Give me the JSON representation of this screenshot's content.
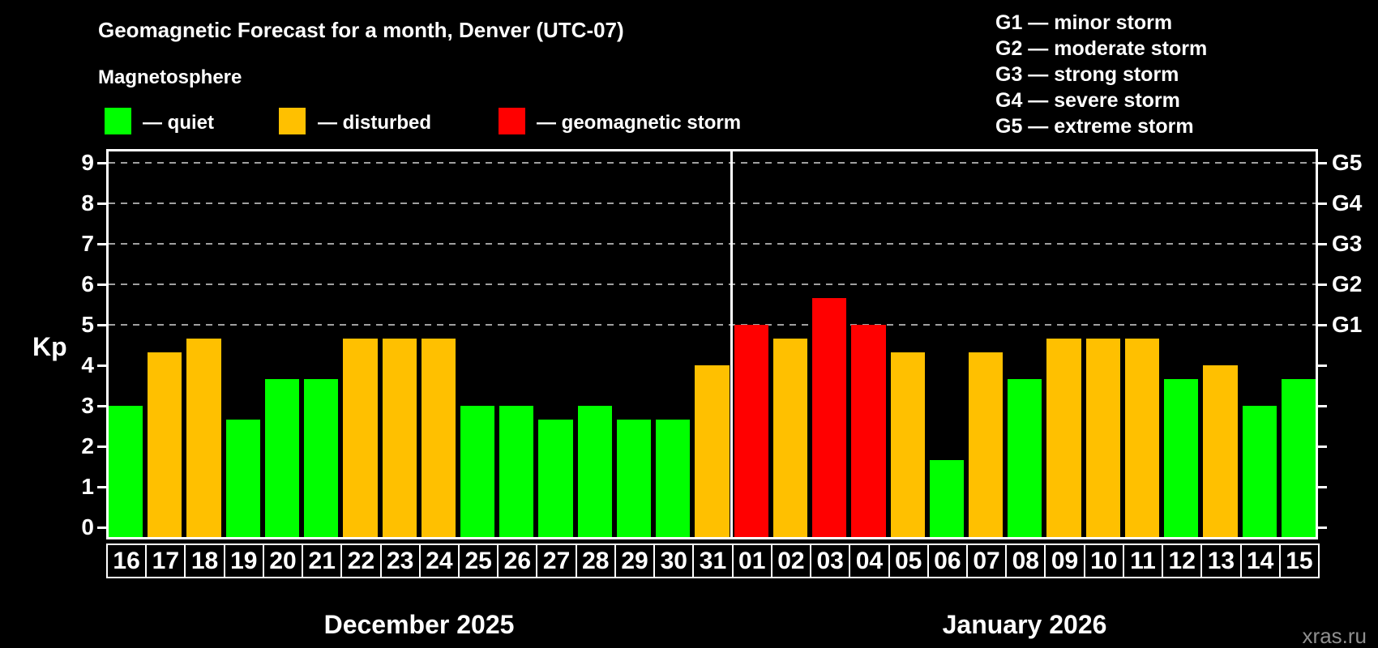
{
  "title": "Geomagnetic Forecast for a month, Denver (UTC-07)",
  "subtitle": "Magnetosphere",
  "bar_legend": {
    "quiet_label": "— quiet",
    "disturbed_label": "— disturbed",
    "storm_label": "— geomagnetic storm"
  },
  "g_scale_legend": [
    "G1 — minor storm",
    "G2 — moderate storm",
    "G3 — strong storm",
    "G4 — severe storm",
    "G5 — extreme storm"
  ],
  "watermark": "xras.ru",
  "colors": {
    "quiet": "#00ff00",
    "disturbed": "#ffc000",
    "storm": "#ff0000",
    "background": "#000000",
    "text": "#ffffff",
    "gridline": "#a0a0a0",
    "watermark": "#8f8f8f"
  },
  "chart_data": {
    "type": "bar",
    "title": "Geomagnetic Forecast for a month, Denver (UTC-07)",
    "ylabel": "Kp",
    "ylim": [
      -0.3,
      9.34
    ],
    "y_ticks": [
      0,
      1,
      2,
      3,
      4,
      5,
      6,
      7,
      8,
      9
    ],
    "grid": "dashed horizontal lines at G levels only",
    "g_levels": [
      {
        "label": "G1",
        "kp": 5
      },
      {
        "label": "G2",
        "kp": 6
      },
      {
        "label": "G3",
        "kp": 7
      },
      {
        "label": "G4",
        "kp": 8
      },
      {
        "label": "G5",
        "kp": 9
      }
    ],
    "status_thresholds": {
      "quiet_below": 4,
      "disturbed_below": 5,
      "storm_at_or_above": 5
    },
    "months": [
      {
        "label": "December 2025",
        "days": [
          "16",
          "17",
          "18",
          "19",
          "20",
          "21",
          "22",
          "23",
          "24",
          "25",
          "26",
          "27",
          "28",
          "29",
          "30",
          "31"
        ],
        "values": [
          3.0,
          4.33,
          4.67,
          2.67,
          3.67,
          3.67,
          4.67,
          4.67,
          4.67,
          3.0,
          3.0,
          2.67,
          3.0,
          2.67,
          2.67,
          4.0
        ],
        "statuses": [
          "quiet",
          "disturbed",
          "disturbed",
          "quiet",
          "quiet",
          "quiet",
          "disturbed",
          "disturbed",
          "disturbed",
          "quiet",
          "quiet",
          "quiet",
          "quiet",
          "quiet",
          "quiet",
          "disturbed"
        ]
      },
      {
        "label": "January 2026",
        "days": [
          "01",
          "02",
          "03",
          "04",
          "05",
          "06",
          "07",
          "08",
          "09",
          "10",
          "11",
          "12",
          "13",
          "14",
          "15"
        ],
        "values": [
          5.0,
          4.67,
          5.67,
          5.0,
          4.33,
          1.67,
          4.33,
          3.67,
          4.67,
          4.67,
          4.67,
          3.67,
          4.0,
          3.0,
          3.67
        ],
        "statuses": [
          "storm",
          "disturbed",
          "storm",
          "storm",
          "disturbed",
          "quiet",
          "disturbed",
          "quiet",
          "disturbed",
          "disturbed",
          "disturbed",
          "quiet",
          "disturbed",
          "quiet",
          "quiet"
        ]
      }
    ]
  }
}
